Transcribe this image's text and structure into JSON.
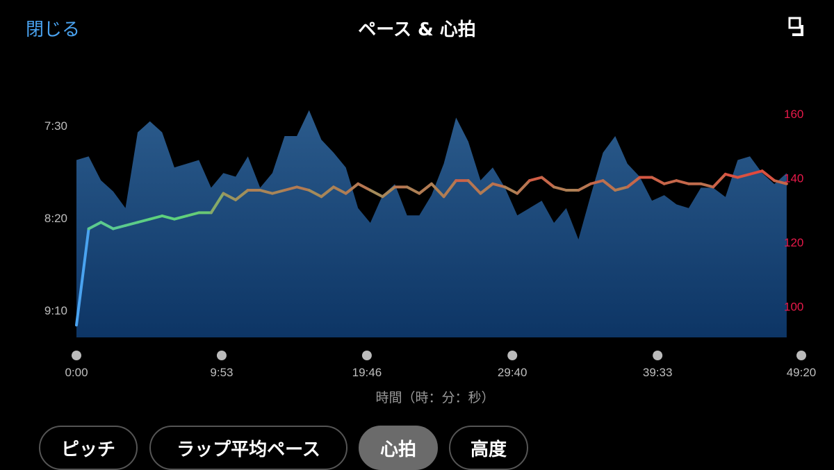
{
  "header": {
    "close_label": "閉じる",
    "title": "ペース & 心拍",
    "expand_icon": "expand-icon"
  },
  "tabs": [
    {
      "label": "ピッチ",
      "selected": false
    },
    {
      "label": "ラップ平均ペース",
      "selected": false
    },
    {
      "label": "心拍",
      "selected": true
    },
    {
      "label": "高度",
      "selected": false
    }
  ],
  "colors": {
    "area_top": "#2b5b8c",
    "area_bottom": "#0d3565",
    "left_axis": "#bfbfbf",
    "right_axis": "#e8194a",
    "accent": "#4aa3f0",
    "hr_low": "#4aa3f0",
    "hr_mid": "#5fd27a",
    "hr_high": "#e8433a"
  },
  "chart_data": {
    "type": "area+line",
    "xlabel": "時間（時：分：秒）",
    "x_ticks": [
      "0:00",
      "9:53",
      "19:46",
      "29:40",
      "39:33",
      "49:20"
    ],
    "x_range": [
      "0:00",
      "49:20"
    ],
    "left_axis": {
      "ticks": [
        "7:30",
        "8:20",
        "9:10"
      ],
      "inverted": true,
      "range": [
        "7:20",
        "9:25"
      ]
    },
    "right_axis": {
      "ticks": [
        "160",
        "140",
        "120",
        "100"
      ],
      "range": [
        90,
        165
      ]
    },
    "grid": false,
    "time": [
      "0:00",
      "0:50",
      "1:40",
      "2:30",
      "3:20",
      "4:10",
      "5:00",
      "5:50",
      "6:40",
      "7:30",
      "8:20",
      "9:10",
      "10:00",
      "10:50",
      "11:40",
      "12:30",
      "13:20",
      "14:10",
      "15:00",
      "15:50",
      "16:40",
      "17:30",
      "18:20",
      "19:10",
      "20:00",
      "20:50",
      "21:40",
      "22:30",
      "23:20",
      "24:10",
      "25:00",
      "25:50",
      "26:40",
      "27:30",
      "28:20",
      "29:10",
      "30:00",
      "30:50",
      "31:40",
      "32:30",
      "33:20",
      "34:10",
      "35:00",
      "35:50",
      "36:40",
      "37:30",
      "38:20",
      "39:10",
      "40:00",
      "40:50",
      "41:40",
      "42:30",
      "43:20",
      "44:10",
      "45:00",
      "45:50",
      "46:40",
      "47:30",
      "48:20"
    ],
    "pace": [
      "7:49",
      "7:47",
      "8:00",
      "8:06",
      "8:15",
      "7:34",
      "7:28",
      "7:34",
      "7:53",
      "7:51",
      "7:49",
      "8:04",
      "7:56",
      "7:58",
      "7:47",
      "8:04",
      "7:56",
      "7:36",
      "7:36",
      "7:22",
      "7:38",
      "7:45",
      "7:53",
      "8:15",
      "8:23",
      "8:08",
      "8:02",
      "8:19",
      "8:19",
      "8:08",
      "7:51",
      "7:26",
      "7:39",
      "8:00",
      "7:53",
      "8:04",
      "8:19",
      "8:15",
      "8:11",
      "8:23",
      "8:15",
      "8:32",
      "8:08",
      "7:45",
      "7:36",
      "7:51",
      "7:58",
      "8:11",
      "8:08",
      "8:13",
      "8:15",
      "8:04",
      "8:04",
      "8:09",
      "7:49",
      "7:47",
      "7:56",
      "8:02",
      "7:56"
    ],
    "heart_rate": [
      94,
      124,
      126,
      124,
      125,
      126,
      127,
      128,
      127,
      128,
      129,
      129,
      135,
      133,
      136,
      136,
      135,
      136,
      137,
      136,
      134,
      137,
      135,
      138,
      136,
      134,
      137,
      137,
      135,
      138,
      134,
      139,
      139,
      135,
      138,
      137,
      135,
      139,
      140,
      137,
      136,
      136,
      138,
      139,
      136,
      137,
      140,
      140,
      138,
      139,
      138,
      138,
      137,
      141,
      140,
      141,
      142,
      139,
      138
    ]
  }
}
